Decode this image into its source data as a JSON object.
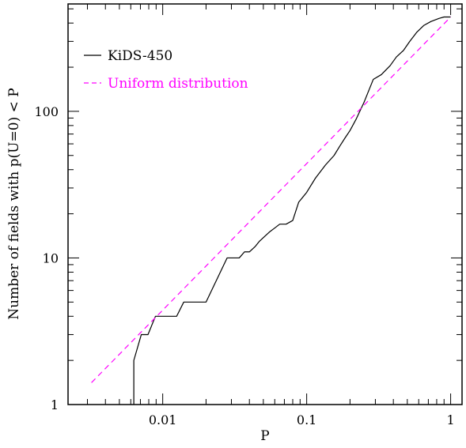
{
  "chart_data": {
    "type": "line",
    "xlabel": "P",
    "ylabel": "Number of fields with p(U=0) < P",
    "xscale": "log",
    "yscale": "log",
    "xlim": [
      0.0022,
      1.2
    ],
    "ylim": [
      1,
      540
    ],
    "x_ticks": [
      {
        "value": 0.01,
        "label": "0.01"
      },
      {
        "value": 0.1,
        "label": "0.1"
      },
      {
        "value": 1,
        "label": "1"
      }
    ],
    "y_ticks": [
      {
        "value": 1,
        "label": "1"
      },
      {
        "value": 10,
        "label": "10"
      },
      {
        "value": 100,
        "label": "100"
      }
    ],
    "legend_position": "top-left",
    "series": [
      {
        "name": "KiDS-450",
        "color": "#000000",
        "style": "solid",
        "points": [
          [
            0.0063,
            1
          ],
          [
            0.0063,
            2
          ],
          [
            0.0071,
            3
          ],
          [
            0.0079,
            3
          ],
          [
            0.0089,
            4
          ],
          [
            0.0125,
            4
          ],
          [
            0.014,
            5
          ],
          [
            0.02,
            5
          ],
          [
            0.028,
            10
          ],
          [
            0.034,
            10
          ],
          [
            0.037,
            11
          ],
          [
            0.04,
            11
          ],
          [
            0.044,
            12
          ],
          [
            0.047,
            13
          ],
          [
            0.051,
            14
          ],
          [
            0.055,
            15
          ],
          [
            0.06,
            16
          ],
          [
            0.065,
            17
          ],
          [
            0.072,
            17
          ],
          [
            0.08,
            18
          ],
          [
            0.088,
            24
          ],
          [
            0.1,
            28
          ],
          [
            0.115,
            35
          ],
          [
            0.135,
            43
          ],
          [
            0.155,
            50
          ],
          [
            0.17,
            58
          ],
          [
            0.185,
            66
          ],
          [
            0.2,
            74
          ],
          [
            0.22,
            88
          ],
          [
            0.25,
            115
          ],
          [
            0.29,
            165
          ],
          [
            0.33,
            178
          ],
          [
            0.38,
            205
          ],
          [
            0.42,
            235
          ],
          [
            0.47,
            260
          ],
          [
            0.52,
            300
          ],
          [
            0.58,
            345
          ],
          [
            0.65,
            385
          ],
          [
            0.73,
            410
          ],
          [
            0.83,
            430
          ],
          [
            0.9,
            440
          ],
          [
            1.0,
            440
          ]
        ]
      },
      {
        "name": "Uniform distribution",
        "color": "#ff00ff",
        "style": "dashed",
        "points": [
          [
            0.0032,
            1.41
          ],
          [
            1.0,
            440
          ]
        ]
      }
    ]
  }
}
